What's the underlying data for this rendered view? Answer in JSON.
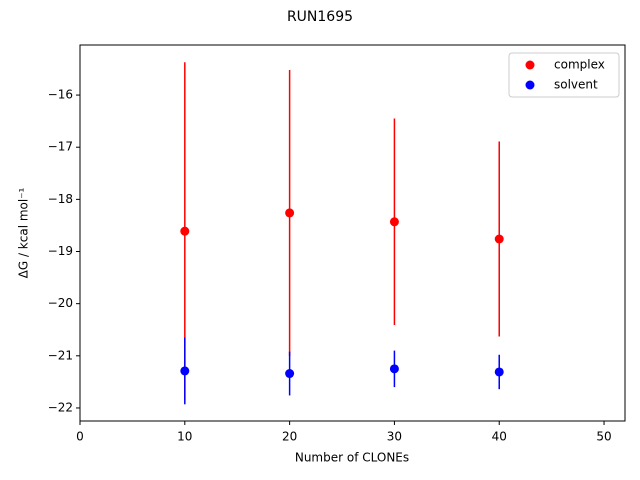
{
  "chart_data": {
    "type": "scatter",
    "title": "RUN1695",
    "x_label": "Number of CLONEs",
    "y_label": "ΔG / kcal mol⁻¹",
    "xlim": [
      0,
      52
    ],
    "ylim": [
      -22.25,
      -15.04
    ],
    "xticks": [
      0,
      10,
      20,
      30,
      40,
      50
    ],
    "yticks": [
      {
        "value": -16,
        "label": "−16"
      },
      {
        "value": -17,
        "label": "−17"
      },
      {
        "value": -18,
        "label": "−18"
      },
      {
        "value": -19,
        "label": "−19"
      },
      {
        "value": -20,
        "label": "−20"
      },
      {
        "value": -21,
        "label": "−21"
      },
      {
        "value": -22,
        "label": "−22"
      }
    ],
    "legend": "upper right",
    "series": [
      {
        "name": "complex",
        "color": "#ff0000",
        "x": [
          10,
          20,
          30,
          40
        ],
        "values": [
          -18.61,
          -18.26,
          -18.43,
          -18.76
        ],
        "errors": [
          3.24,
          2.74,
          1.98,
          1.87
        ]
      },
      {
        "name": "solvent",
        "color": "#0000ff",
        "x": [
          10,
          20,
          30,
          40
        ],
        "values": [
          -21.29,
          -21.34,
          -21.25,
          -21.31
        ],
        "errors": [
          0.64,
          0.42,
          0.35,
          0.33
        ]
      }
    ]
  }
}
